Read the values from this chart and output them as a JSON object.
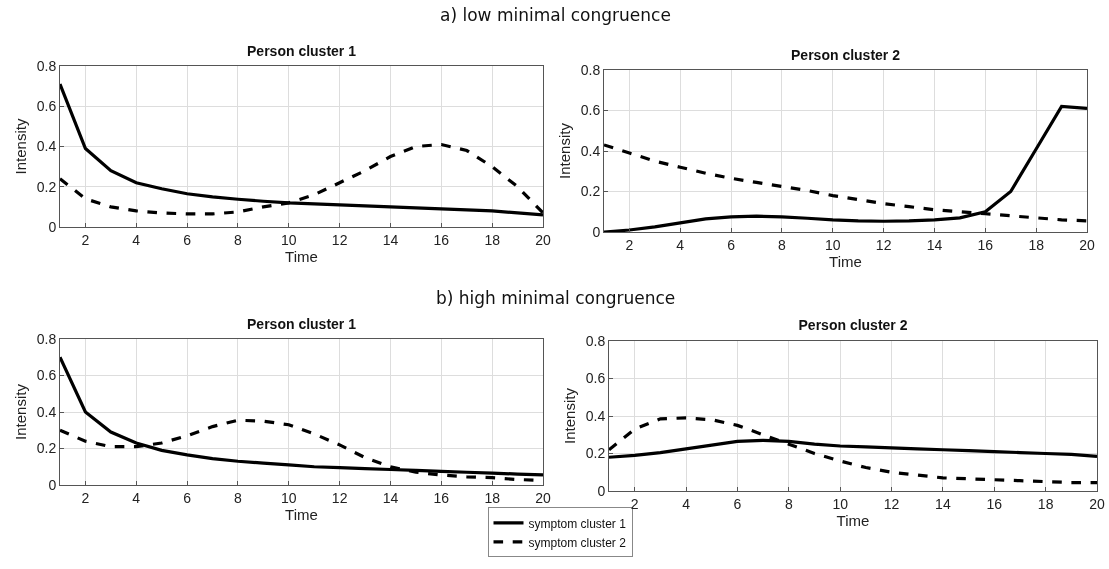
{
  "chart_data": [
    {
      "type": "line",
      "title": "Person cluster 1",
      "annotations": [
        "a) low minimal congruence"
      ],
      "xlabel": "Time",
      "ylabel": "Intensity",
      "x": [
        1,
        2,
        3,
        4,
        5,
        6,
        7,
        8,
        9,
        10,
        11,
        12,
        13,
        14,
        15,
        16,
        17,
        18,
        19,
        20
      ],
      "xlim": [
        1,
        20
      ],
      "xticks": [
        2,
        4,
        6,
        8,
        10,
        12,
        14,
        16,
        18,
        20
      ],
      "ylim": [
        0,
        0.8
      ],
      "yticks": [
        0,
        0.2,
        0.4,
        0.6,
        0.8
      ],
      "grid": true,
      "legend": false,
      "series": [
        {
          "color": "#000000",
          "line_style": "solid",
          "values": [
            0.71,
            0.39,
            0.28,
            0.22,
            0.19,
            0.165,
            0.15,
            0.138,
            0.128,
            0.12,
            0.115,
            0.11,
            0.105,
            0.1,
            0.095,
            0.09,
            0.085,
            0.08,
            0.07,
            0.06
          ]
        },
        {
          "color": "#000000",
          "line_style": "dashed",
          "values": [
            0.24,
            0.14,
            0.1,
            0.08,
            0.07,
            0.065,
            0.065,
            0.075,
            0.1,
            0.12,
            0.16,
            0.22,
            0.28,
            0.35,
            0.4,
            0.41,
            0.38,
            0.3,
            0.2,
            0.07
          ]
        }
      ]
    },
    {
      "type": "line",
      "title": "Person cluster 2",
      "xlabel": "Time",
      "ylabel": "Intensity",
      "x": [
        1,
        2,
        3,
        4,
        5,
        6,
        7,
        8,
        9,
        10,
        11,
        12,
        13,
        14,
        15,
        16,
        17,
        18,
        19,
        20
      ],
      "xlim": [
        1,
        20
      ],
      "xticks": [
        2,
        4,
        6,
        8,
        10,
        12,
        14,
        16,
        18,
        20
      ],
      "ylim": [
        0,
        0.8
      ],
      "yticks": [
        0,
        0.2,
        0.4,
        0.6,
        0.8
      ],
      "grid": true,
      "legend": false,
      "series": [
        {
          "color": "#000000",
          "line_style": "solid",
          "values": [
            0,
            0.01,
            0.025,
            0.045,
            0.065,
            0.075,
            0.078,
            0.075,
            0.068,
            0.06,
            0.055,
            0.053,
            0.055,
            0.06,
            0.07,
            0.1,
            0.2,
            0.41,
            0.62,
            0.61
          ]
        },
        {
          "color": "#000000",
          "line_style": "dashed",
          "values": [
            0.43,
            0.39,
            0.35,
            0.32,
            0.29,
            0.265,
            0.245,
            0.225,
            0.205,
            0.18,
            0.16,
            0.14,
            0.125,
            0.11,
            0.1,
            0.09,
            0.08,
            0.07,
            0.06,
            0.055
          ]
        }
      ]
    },
    {
      "type": "line",
      "title": "Person cluster 1",
      "annotations": [
        "b) high minimal congruence"
      ],
      "xlabel": "Time",
      "ylabel": "Intensity",
      "x": [
        1,
        2,
        3,
        4,
        5,
        6,
        7,
        8,
        9,
        10,
        11,
        12,
        13,
        14,
        15,
        16,
        17,
        18,
        19,
        20
      ],
      "xlim": [
        1,
        20
      ],
      "xticks": [
        2,
        4,
        6,
        8,
        10,
        12,
        14,
        16,
        18,
        20
      ],
      "ylim": [
        0,
        0.8
      ],
      "yticks": [
        0,
        0.2,
        0.4,
        0.6,
        0.8
      ],
      "grid": true,
      "legend": "bottom",
      "series": [
        {
          "name": "symptom cluster 1",
          "color": "#000000",
          "line_style": "solid",
          "values": [
            0.7,
            0.4,
            0.29,
            0.23,
            0.19,
            0.165,
            0.145,
            0.13,
            0.12,
            0.11,
            0.1,
            0.095,
            0.09,
            0.085,
            0.08,
            0.075,
            0.07,
            0.065,
            0.06,
            0.055
          ]
        },
        {
          "name": "symptom cluster 2",
          "color": "#000000",
          "line_style": "dashed",
          "values": [
            0.3,
            0.24,
            0.21,
            0.21,
            0.23,
            0.27,
            0.32,
            0.355,
            0.35,
            0.33,
            0.28,
            0.22,
            0.15,
            0.1,
            0.07,
            0.055,
            0.045,
            0.04,
            0.03,
            0.025
          ]
        }
      ]
    },
    {
      "type": "line",
      "title": "Person cluster 2",
      "xlabel": "Time",
      "ylabel": "Intensity",
      "x": [
        1,
        2,
        3,
        4,
        5,
        6,
        7,
        8,
        9,
        10,
        11,
        12,
        13,
        14,
        15,
        16,
        17,
        18,
        19,
        20
      ],
      "xlim": [
        1,
        20
      ],
      "xticks": [
        2,
        4,
        6,
        8,
        10,
        12,
        14,
        16,
        18,
        20
      ],
      "ylim": [
        0,
        0.8
      ],
      "yticks": [
        0,
        0.2,
        0.4,
        0.6,
        0.8
      ],
      "grid": true,
      "legend": false,
      "series": [
        {
          "color": "#000000",
          "line_style": "solid",
          "values": [
            0.18,
            0.19,
            0.205,
            0.225,
            0.245,
            0.265,
            0.27,
            0.265,
            0.25,
            0.24,
            0.235,
            0.23,
            0.225,
            0.22,
            0.215,
            0.21,
            0.205,
            0.2,
            0.195,
            0.185
          ]
        },
        {
          "color": "#000000",
          "line_style": "dashed",
          "values": [
            0.22,
            0.33,
            0.385,
            0.39,
            0.38,
            0.35,
            0.3,
            0.25,
            0.2,
            0.16,
            0.125,
            0.1,
            0.085,
            0.07,
            0.065,
            0.06,
            0.055,
            0.05,
            0.045,
            0.045
          ]
        }
      ]
    }
  ]
}
